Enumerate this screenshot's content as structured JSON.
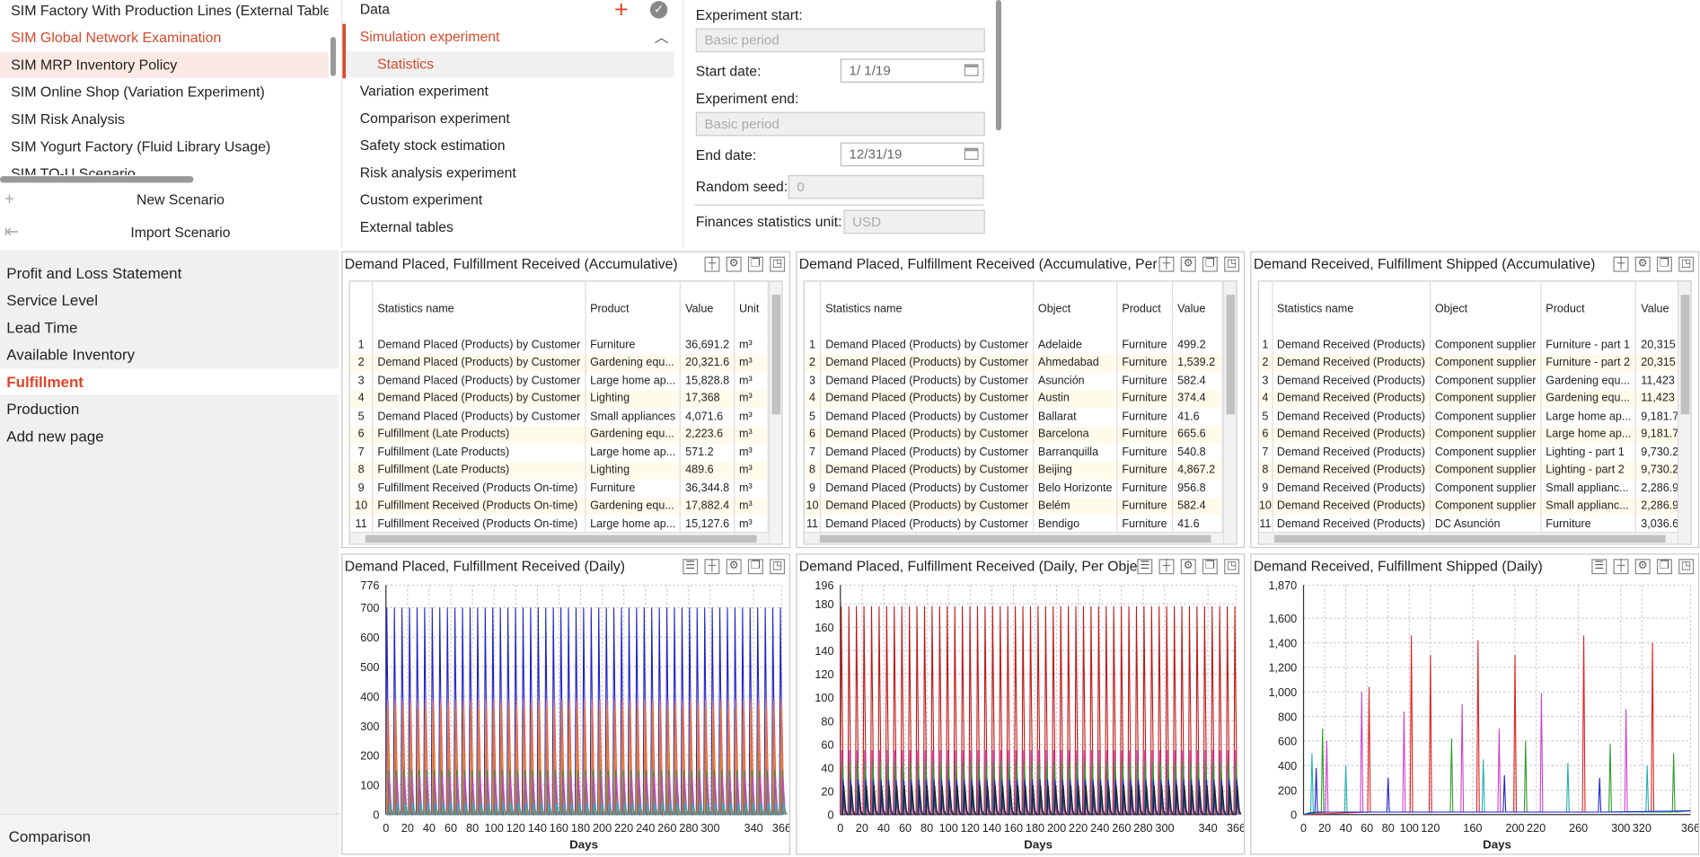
{
  "scenarios": {
    "items": [
      {
        "label": "SIM Factory With Production Lines (External Tables",
        "state": "normal"
      },
      {
        "label": "SIM Global Network Examination",
        "state": "red"
      },
      {
        "label": "SIM MRP Inventory Policy",
        "state": "selected"
      },
      {
        "label": "SIM Online Shop (Variation Experiment)",
        "state": "normal"
      },
      {
        "label": "SIM Risk Analysis",
        "state": "normal"
      },
      {
        "label": "SIM Yogurt Factory (Fluid Library Usage)",
        "state": "normal"
      },
      {
        "label": "SIM TO-U Scenario",
        "state": "normal"
      }
    ],
    "new_scenario": "New Scenario",
    "import_scenario": "Import Scenario"
  },
  "experiment_tree": {
    "items": [
      {
        "label": "Data",
        "level": 0
      },
      {
        "label": "Simulation experiment",
        "level": 0,
        "active": true
      },
      {
        "label": "Statistics",
        "level": 1,
        "active": true
      },
      {
        "label": "Variation experiment",
        "level": 0
      },
      {
        "label": "Comparison experiment",
        "level": 0
      },
      {
        "label": "Safety stock estimation",
        "level": 0
      },
      {
        "label": "Risk analysis experiment",
        "level": 0
      },
      {
        "label": "Custom experiment",
        "level": 0
      },
      {
        "label": "External tables",
        "level": 0
      }
    ]
  },
  "settings": {
    "experiment_start_label": "Experiment start:",
    "experiment_start_value": "Basic period",
    "start_date_label": "Start date:",
    "start_date_value": "1/  1/19",
    "experiment_end_label": "Experiment end:",
    "experiment_end_value": "Basic period",
    "end_date_label": "End date:",
    "end_date_value": "12/31/19",
    "random_seed_label": "Random seed:",
    "random_seed_value": "0",
    "finances_unit_label": "Finances statistics unit:",
    "finances_unit_value": "USD"
  },
  "pages": {
    "items": [
      {
        "label": "Profit and Loss Statement"
      },
      {
        "label": "Service Level"
      },
      {
        "label": "Lead Time"
      },
      {
        "label": "Available Inventory"
      },
      {
        "label": "Fulfillment",
        "selected": true
      },
      {
        "label": "Production"
      },
      {
        "label": "Add new page"
      }
    ],
    "comparison": "Comparison"
  },
  "tables": [
    {
      "title": "Demand Placed, Fulfillment Received (Accumulative)",
      "columns": [
        "",
        "Statistics name",
        "Product",
        "Value",
        "Unit"
      ],
      "rows": [
        [
          "1",
          "Demand Placed (Products) by Customer",
          "Furniture",
          "36,691.2",
          "m³"
        ],
        [
          "2",
          "Demand Placed (Products) by Customer",
          "Gardening equ...",
          "20,321.6",
          "m³"
        ],
        [
          "3",
          "Demand Placed (Products) by Customer",
          "Large home ap...",
          "15,828.8",
          "m³"
        ],
        [
          "4",
          "Demand Placed (Products) by Customer",
          "Lighting",
          "17,368",
          "m³"
        ],
        [
          "5",
          "Demand Placed (Products) by Customer",
          "Small appliances",
          "4,071.6",
          "m³"
        ],
        [
          "6",
          "Fulfillment (Late Products)",
          "Gardening equ...",
          "2,223.6",
          "m³"
        ],
        [
          "7",
          "Fulfillment (Late Products)",
          "Large home ap...",
          "571.2",
          "m³"
        ],
        [
          "8",
          "Fulfillment (Late Products)",
          "Lighting",
          "489.6",
          "m³"
        ],
        [
          "9",
          "Fulfillment Received (Products On-time)",
          "Furniture",
          "36,344.8",
          "m³"
        ],
        [
          "10",
          "Fulfillment Received (Products On-time)",
          "Gardening equ...",
          "17,882.4",
          "m³"
        ],
        [
          "11",
          "Fulfillment Received (Products On-time)",
          "Large home ap...",
          "15,127.6",
          "m³"
        ]
      ]
    },
    {
      "title": "Demand Placed, Fulfillment Received (Accumulative, Per Object)",
      "columns": [
        "",
        "Statistics name",
        "Object",
        "Product",
        "Value"
      ],
      "rows": [
        [
          "1",
          "Demand Placed (Products) by Customer",
          "Adelaide",
          "Furniture",
          "499.2"
        ],
        [
          "2",
          "Demand Placed (Products) by Customer",
          "Ahmedabad",
          "Furniture",
          "1,539.2"
        ],
        [
          "3",
          "Demand Placed (Products) by Customer",
          "Asunción",
          "Furniture",
          "582.4"
        ],
        [
          "4",
          "Demand Placed (Products) by Customer",
          "Austin",
          "Furniture",
          "374.4"
        ],
        [
          "5",
          "Demand Placed (Products) by Customer",
          "Ballarat",
          "Furniture",
          "41.6"
        ],
        [
          "6",
          "Demand Placed (Products) by Customer",
          "Barcelona",
          "Furniture",
          "665.6"
        ],
        [
          "7",
          "Demand Placed (Products) by Customer",
          "Barranquilla",
          "Furniture",
          "540.8"
        ],
        [
          "8",
          "Demand Placed (Products) by Customer",
          "Beijing",
          "Furniture",
          "4,867.2"
        ],
        [
          "9",
          "Demand Placed (Products) by Customer",
          "Belo Horizonte",
          "Furniture",
          "956.8"
        ],
        [
          "10",
          "Demand Placed (Products) by Customer",
          "Belém",
          "Furniture",
          "582.4"
        ],
        [
          "11",
          "Demand Placed (Products) by Customer",
          "Bendigo",
          "Furniture",
          "41.6"
        ]
      ]
    },
    {
      "title": "Demand Received, Fulfillment Shipped (Accumulative)",
      "columns": [
        "",
        "Statistics name",
        "Object",
        "Product",
        "Value"
      ],
      "rows": [
        [
          "1",
          "Demand Received (Products)",
          "Component supplier",
          "Furniture - part 1",
          "20,315"
        ],
        [
          "2",
          "Demand Received (Products)",
          "Component supplier",
          "Furniture - part 2",
          "20,315"
        ],
        [
          "3",
          "Demand Received (Products)",
          "Component supplier",
          "Gardening equ...",
          "11,423"
        ],
        [
          "4",
          "Demand Received (Products)",
          "Component supplier",
          "Gardening equ...",
          "11,423"
        ],
        [
          "5",
          "Demand Received (Products)",
          "Component supplier",
          "Large home ap...",
          "9,181.7"
        ],
        [
          "6",
          "Demand Received (Products)",
          "Component supplier",
          "Large home ap...",
          "9,181.7"
        ],
        [
          "7",
          "Demand Received (Products)",
          "Component supplier",
          "Lighting - part 1",
          "9,730.2"
        ],
        [
          "8",
          "Demand Received (Products)",
          "Component supplier",
          "Lighting - part 2",
          "9,730.2"
        ],
        [
          "9",
          "Demand Received (Products)",
          "Component supplier",
          "Small applianc...",
          "2,286.9"
        ],
        [
          "10",
          "Demand Received (Products)",
          "Component supplier",
          "Small applianc...",
          "2,286.9"
        ],
        [
          "11",
          "Demand Received (Products)",
          "DC Asunción",
          "Furniture",
          "3,036.6"
        ]
      ]
    }
  ],
  "chart_data": [
    {
      "type": "line",
      "title": "Demand Placed, Fulfillment Received (Daily)",
      "xlabel": "Days",
      "ylabel": "",
      "xlim": [
        0,
        366
      ],
      "ylim": [
        0,
        776
      ],
      "xticks": [
        "0",
        "20",
        "40",
        "60",
        "80",
        "100",
        "120",
        "140",
        "160",
        "180",
        "200",
        "220",
        "240",
        "260",
        "280",
        "300",
        "340",
        "366"
      ],
      "yticks": [
        "0",
        "100",
        "200",
        "300",
        "400",
        "500",
        "600",
        "700",
        "776"
      ],
      "grid": true,
      "series": [
        {
          "color": "#1f1fcc",
          "period": 7,
          "values": [
            700
          ]
        },
        {
          "color": "#f2a900",
          "period": 7,
          "values": [
            360
          ]
        },
        {
          "color": "#e06060",
          "period": 7,
          "values": [
            390
          ]
        },
        {
          "color": "#2a9d2a",
          "period": 7,
          "values": [
            150
          ]
        },
        {
          "color": "#d040d0",
          "period": 7,
          "values": [
            130
          ]
        },
        {
          "color": "#20b0b0",
          "period": 7,
          "values": [
            40
          ]
        }
      ]
    },
    {
      "type": "line",
      "title": "Demand Placed, Fulfillment Received (Daily, Per Object)",
      "xlabel": "Days",
      "ylabel": "",
      "xlim": [
        0,
        366
      ],
      "ylim": [
        0,
        196
      ],
      "xticks": [
        "0",
        "20",
        "40",
        "60",
        "80",
        "100",
        "120",
        "140",
        "160",
        "180",
        "200",
        "220",
        "240",
        "260",
        "280",
        "300",
        "340",
        "366"
      ],
      "yticks": [
        "0",
        "20",
        "40",
        "60",
        "80",
        "100",
        "120",
        "140",
        "160",
        "180",
        "196"
      ],
      "grid": true,
      "series": [
        {
          "color": "#c01818",
          "period": 7,
          "values": [
            178
          ]
        },
        {
          "color": "#d040d0",
          "period": 7,
          "values": [
            55
          ]
        },
        {
          "color": "#2a9d2a",
          "period": 7,
          "values": [
            45
          ]
        },
        {
          "color": "#1f1fcc",
          "period": 7,
          "values": [
            30
          ]
        },
        {
          "color": "#222222",
          "period": 7,
          "values": [
            25
          ]
        }
      ]
    },
    {
      "type": "line",
      "title": "Demand Received, Fulfillment Shipped (Daily)",
      "xlabel": "Days",
      "ylabel": "",
      "xlim": [
        0,
        366
      ],
      "ylim": [
        0,
        1870
      ],
      "xticks": [
        "0",
        "20",
        "40",
        "60",
        "80",
        "100",
        "120",
        "160",
        "200",
        "220",
        "260",
        "300",
        "320",
        "366"
      ],
      "yticks": [
        "0",
        "200",
        "400",
        "600",
        "800",
        "1,000",
        "1,200",
        "1,400",
        "1,600",
        "1,870"
      ],
      "grid": true,
      "series": [
        {
          "color": "#e02020",
          "spikes": [
            [
              102,
              1460
            ],
            [
              120,
              1300
            ],
            [
              165,
              1420
            ],
            [
              265,
              1460
            ],
            [
              330,
              1400
            ],
            [
              200,
              1300
            ],
            [
              62,
              1040
            ]
          ]
        },
        {
          "color": "#d040d0",
          "spikes": [
            [
              55,
              1000
            ],
            [
              95,
              840
            ],
            [
              150,
              900
            ],
            [
              225,
              990
            ],
            [
              305,
              860
            ],
            [
              22,
              600
            ],
            [
              185,
              700
            ]
          ]
        },
        {
          "color": "#2a9d2a",
          "spikes": [
            [
              18,
              700
            ],
            [
              140,
              620
            ],
            [
              210,
              600
            ],
            [
              290,
              580
            ],
            [
              350,
              500
            ]
          ]
        },
        {
          "color": "#20b0b0",
          "spikes": [
            [
              8,
              500
            ],
            [
              40,
              400
            ],
            [
              170,
              450
            ],
            [
              250,
              420
            ],
            [
              325,
              400
            ]
          ]
        },
        {
          "color": "#1f1fcc",
          "spikes": [
            [
              12,
              380
            ],
            [
              80,
              300
            ],
            [
              190,
              320
            ],
            [
              280,
              300
            ]
          ]
        }
      ]
    }
  ]
}
